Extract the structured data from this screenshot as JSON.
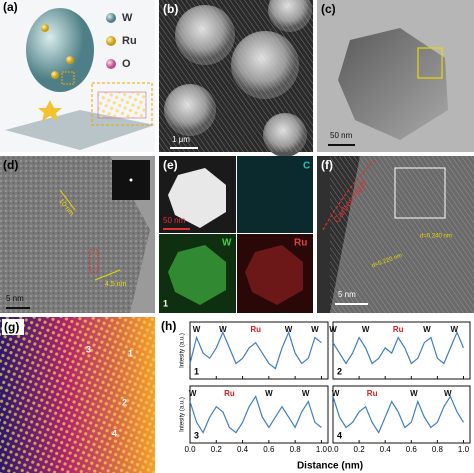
{
  "figure": {
    "panel_a": {
      "label": "(a)",
      "legend": [
        "W",
        "Ru",
        "O"
      ]
    },
    "panel_b": {
      "label": "(b)",
      "scale_bar": "1 μm"
    },
    "panel_c": {
      "label": "(c)",
      "scale_bar": "50 nm"
    },
    "panel_d": {
      "label": "(d)",
      "scale_bar": "5 nm",
      "measurements": [
        "10 nm",
        "4.5 nm"
      ]
    },
    "panel_e": {
      "label": "(e)",
      "scale_bar": "50 nm",
      "maps": [
        "C",
        "W",
        "Ru"
      ],
      "index": "1"
    },
    "panel_f": {
      "label": "(f)",
      "scale_bar": "5 nm",
      "carbon": "Carbon layer",
      "spacings": [
        "d=0.240 nm",
        "d=0.220 nm"
      ]
    },
    "panel_g": {
      "label": "(g)",
      "markers": [
        "1",
        "2",
        "3",
        "4"
      ]
    },
    "panel_h": {
      "label": "(h)",
      "xlabel": "Distance (nm)"
    }
  },
  "chart_data": [
    {
      "type": "line",
      "label": "1",
      "ylabel": "Intesity (a.u.)",
      "color": "#3d7fc0",
      "xlim": [
        0,
        1.05
      ],
      "ylim": [
        0,
        11
      ],
      "xticks": [
        {
          "value": 0,
          "label": "0.0"
        },
        0.2,
        0.4,
        0.6,
        0.8,
        {
          "value": 1,
          "label": "1.0"
        }
      ],
      "show_xtick_labels": false,
      "x": [
        0,
        0.05,
        0.1,
        0.15,
        0.2,
        0.25,
        0.3,
        0.35,
        0.4,
        0.45,
        0.5,
        0.55,
        0.6,
        0.65,
        0.7,
        0.75,
        0.8,
        0.85,
        0.9,
        0.95,
        1
      ],
      "values": [
        3,
        8,
        5,
        4,
        6,
        9,
        6,
        3,
        4,
        6,
        7,
        5,
        3,
        2,
        6,
        9,
        5,
        3,
        4,
        8,
        7
      ],
      "annotations": [
        {
          "text": "W",
          "x": 0.05
        },
        {
          "text": "W",
          "x": 0.25
        },
        {
          "text": "Ru",
          "x": 0.5
        },
        {
          "text": "W",
          "x": 0.75
        },
        {
          "text": "W",
          "x": 0.95
        }
      ]
    },
    {
      "type": "line",
      "label": "2",
      "color": "#3d7fc0",
      "xlim": [
        0,
        1.05
      ],
      "ylim": [
        0,
        11
      ],
      "xticks": [
        {
          "value": 0,
          "label": "0.0"
        },
        0.2,
        0.4,
        0.6,
        0.8,
        {
          "value": 1,
          "label": "1.0"
        }
      ],
      "show_xtick_labels": false,
      "x": [
        0,
        0.05,
        0.1,
        0.15,
        0.2,
        0.25,
        0.3,
        0.35,
        0.4,
        0.45,
        0.5,
        0.55,
        0.6,
        0.65,
        0.7,
        0.75,
        0.8,
        0.85,
        0.9,
        0.95,
        1
      ],
      "values": [
        7,
        5,
        3,
        5,
        8,
        6,
        3,
        4,
        6,
        5,
        8,
        6,
        3,
        4,
        7,
        8,
        4,
        3,
        6,
        9,
        6
      ],
      "annotations": [
        {
          "text": "W",
          "x": 0.0
        },
        {
          "text": "W",
          "x": 0.25
        },
        {
          "text": "Ru",
          "x": 0.5
        },
        {
          "text": "W",
          "x": 0.72
        },
        {
          "text": "W",
          "x": 0.93
        }
      ]
    },
    {
      "type": "line",
      "label": "3",
      "ylabel": "Intesity (a.u.)",
      "color": "#3d7fc0",
      "xlim": [
        0,
        1.05
      ],
      "ylim": [
        0,
        11
      ],
      "xticks": [
        {
          "value": 0,
          "label": "0.0"
        },
        0.2,
        0.4,
        0.6,
        0.8,
        {
          "value": 1,
          "label": "1.0"
        }
      ],
      "show_xtick_labels": true,
      "x": [
        0,
        0.05,
        0.1,
        0.15,
        0.2,
        0.25,
        0.3,
        0.35,
        0.4,
        0.45,
        0.5,
        0.55,
        0.6,
        0.65,
        0.7,
        0.75,
        0.8,
        0.85,
        0.9,
        0.95,
        1
      ],
      "values": [
        8,
        4,
        2,
        5,
        7,
        6,
        3,
        2,
        4,
        7,
        9,
        5,
        3,
        5,
        7,
        5,
        3,
        6,
        8,
        4,
        3
      ],
      "annotations": [
        {
          "text": "W",
          "x": 0.02
        },
        {
          "text": "Ru",
          "x": 0.3
        },
        {
          "text": "W",
          "x": 0.6
        },
        {
          "text": "W",
          "x": 0.88
        }
      ]
    },
    {
      "type": "line",
      "label": "4",
      "color": "#3d7fc0",
      "xlim": [
        0,
        1.05
      ],
      "ylim": [
        0,
        11
      ],
      "xticks": [
        {
          "value": 0,
          "label": "0.0"
        },
        0.2,
        0.4,
        0.6,
        0.8,
        {
          "value": 1,
          "label": "1.0"
        }
      ],
      "show_xtick_labels": true,
      "x": [
        0,
        0.05,
        0.1,
        0.15,
        0.2,
        0.25,
        0.3,
        0.35,
        0.4,
        0.45,
        0.5,
        0.55,
        0.6,
        0.65,
        0.7,
        0.75,
        0.8,
        0.85,
        0.9,
        0.95,
        1
      ],
      "values": [
        9,
        5,
        3,
        4,
        6,
        7,
        4,
        2,
        5,
        8,
        6,
        3,
        4,
        8,
        5,
        3,
        4,
        7,
        9,
        6,
        4
      ],
      "annotations": [
        {
          "text": "W",
          "x": 0.02
        },
        {
          "text": "Ru",
          "x": 0.3
        },
        {
          "text": "W",
          "x": 0.62
        },
        {
          "text": "W",
          "x": 0.88
        }
      ]
    }
  ]
}
